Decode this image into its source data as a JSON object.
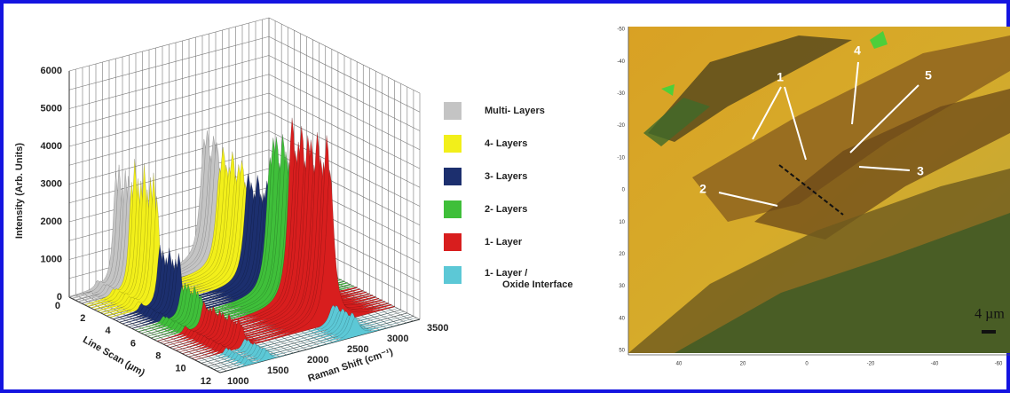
{
  "left_panel": {
    "y_axis": {
      "label": "Intensity (Arb. Units)",
      "ticks": [
        "0",
        "1000",
        "2000",
        "3000",
        "4000",
        "5000",
        "6000"
      ]
    },
    "x_axis": {
      "label": "Line Scan (µm)",
      "ticks": [
        "0",
        "2",
        "4",
        "6",
        "8",
        "10",
        "12"
      ]
    },
    "z_axis": {
      "label": "Raman Shift (cm⁻¹)",
      "ticks": [
        "1000",
        "1500",
        "2000",
        "2500",
        "3000",
        "3500"
      ]
    },
    "legend": [
      {
        "label": "Multi- Layers",
        "color": "#c4c4c4"
      },
      {
        "label": "4- Layers",
        "color": "#f2ef1a"
      },
      {
        "label": "3- Layers",
        "color": "#1c2f6e"
      },
      {
        "label": "2- Layers",
        "color": "#3fbf3a"
      },
      {
        "label": "1- Layer",
        "color": "#d81e1e"
      },
      {
        "label": "1- Layer / Oxide Interface",
        "color": "#5cc8d6"
      }
    ]
  },
  "right_panel": {
    "y_ticks": [
      "-50",
      "-40",
      "-30",
      "-20",
      "-10",
      "0",
      "10",
      "20",
      "30",
      "40",
      "50"
    ],
    "x_ticks": [
      "40",
      "20",
      "0",
      "-20",
      "-40",
      "-60"
    ],
    "annotations": [
      "1",
      "2",
      "3",
      "4",
      "5"
    ],
    "scale_bar": "4 µm"
  }
}
